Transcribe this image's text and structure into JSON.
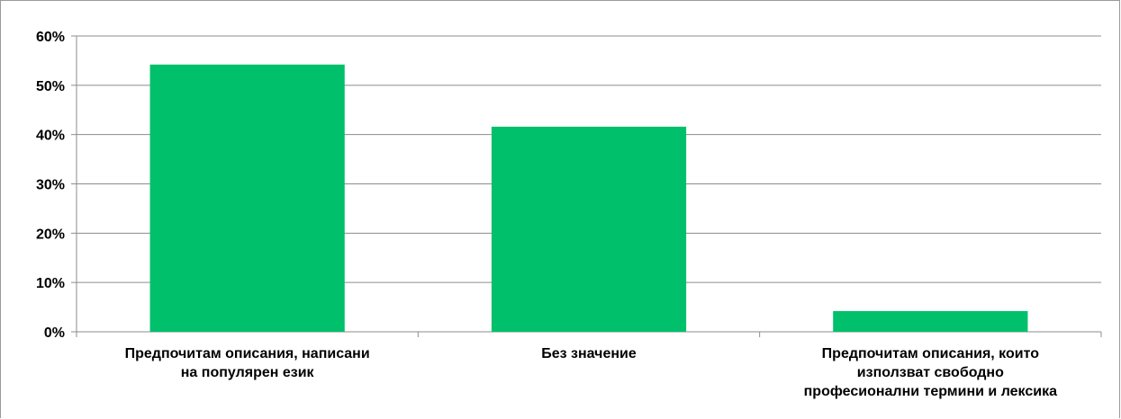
{
  "chart_data": {
    "type": "bar",
    "title": "",
    "xlabel": "",
    "ylabel": "",
    "categories": [
      "Предпочитам описания, написани\nна популярен език",
      "Без значение",
      "Предпочитам описания, които\nизползват свободно\nпрофесионални термини и лексика"
    ],
    "values": [
      54.2,
      41.6,
      4.2
    ],
    "ylim": [
      0,
      60
    ],
    "yticks": [
      0,
      10,
      20,
      30,
      40,
      50,
      60
    ],
    "ytick_labels": [
      "0%",
      "10%",
      "20%",
      "30%",
      "40%",
      "50%",
      "60%"
    ],
    "grid": true,
    "legend": "none",
    "bar_color": "#00c06c"
  }
}
